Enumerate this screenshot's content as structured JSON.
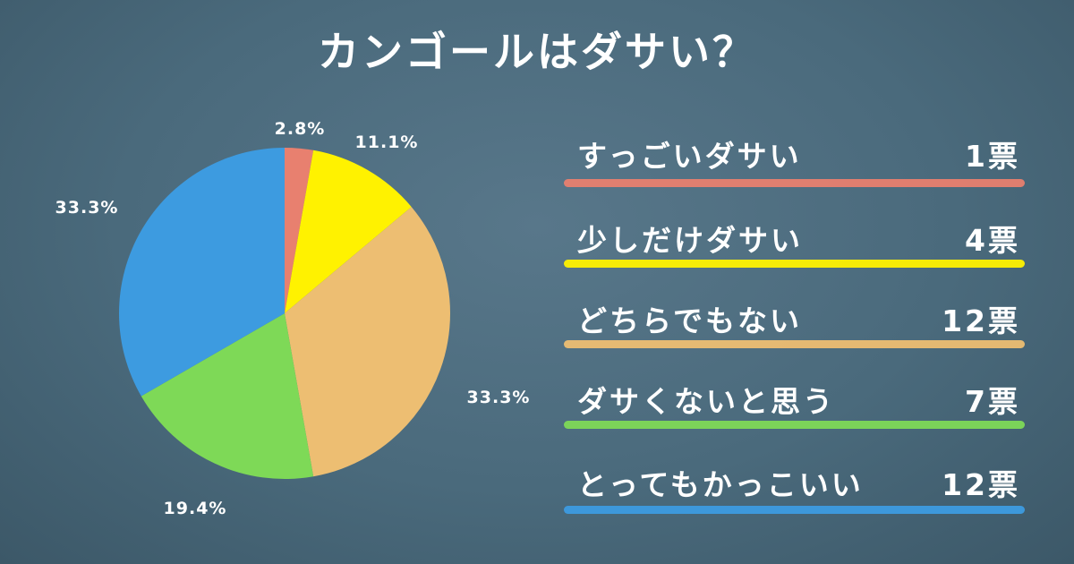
{
  "title": "カンゴールはダサい？",
  "chart_data": {
    "type": "pie",
    "title": "カンゴールはダサい？",
    "start": "top",
    "direction": "clockwise",
    "categories": [
      "すっごいダサい",
      "少しだけダサい",
      "どちらでもない",
      "ダサくないと思う",
      "とってもかっこいい"
    ],
    "values": [
      1,
      4,
      12,
      7,
      12
    ],
    "count_labels": [
      "1票",
      "4票",
      "12票",
      "7票",
      "12票"
    ],
    "percent_labels": [
      "2.8%",
      "11.1%",
      "33.3%",
      "19.4%",
      "33.3%"
    ],
    "colors": [
      "#E8806F",
      "#FFF200",
      "#EDBE72",
      "#7ED957",
      "#3D9BE0"
    ],
    "legend": "right"
  }
}
